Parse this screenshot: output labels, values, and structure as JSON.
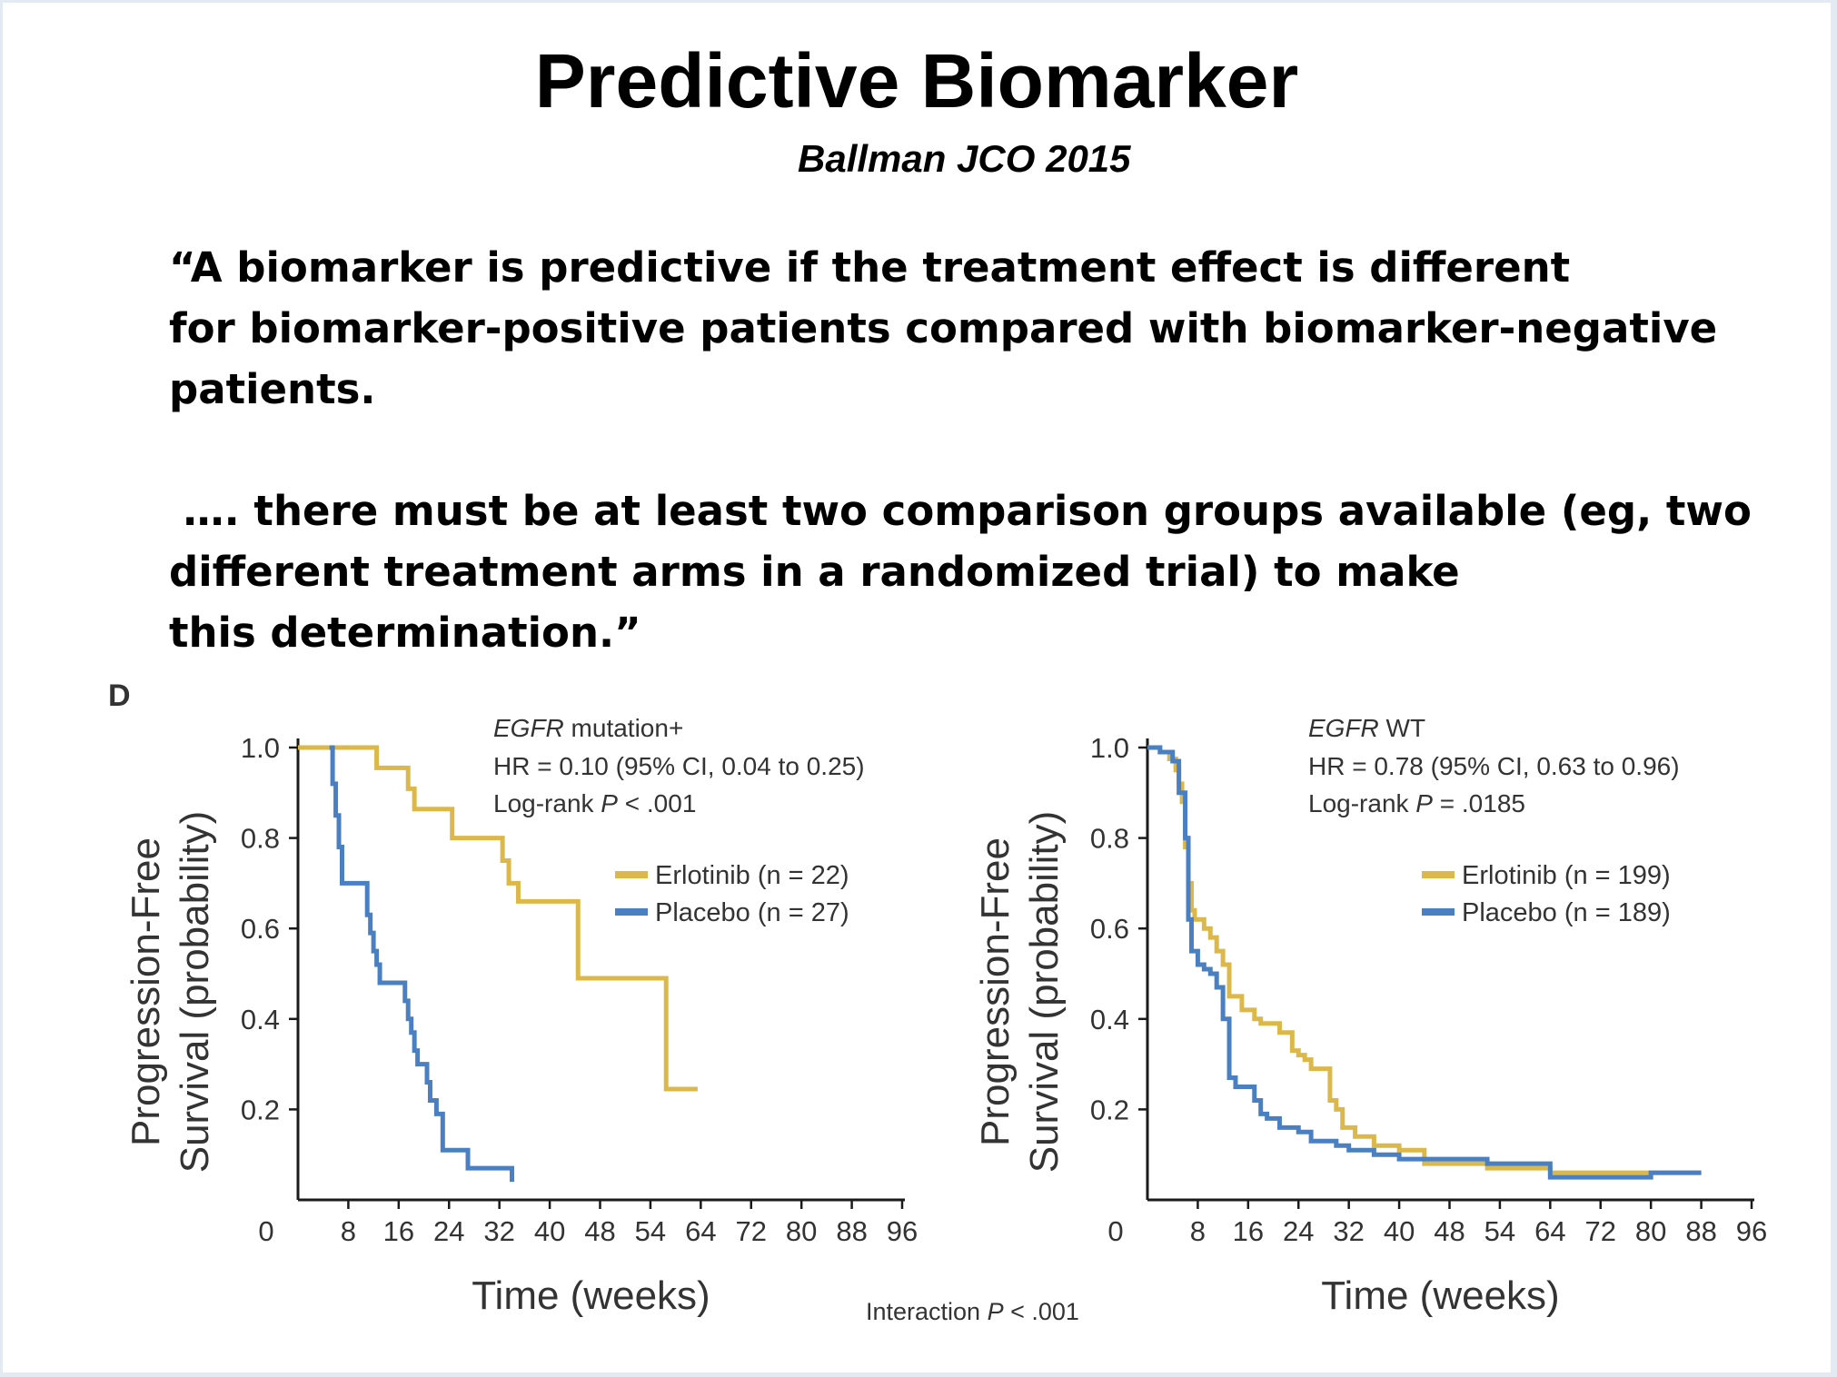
{
  "slide": {
    "title": "Predictive Biomarker",
    "subtitle": "Ballman JCO 2015",
    "quote_lines": [
      "“A biomarker is predictive if the treatment effect is different",
      "for biomarker-positive patients compared with biomarker-negative",
      "patients.",
      "",
      " …. there must be at least two comparison groups available (eg, two",
      "different treatment arms in a randomized trial) to make",
      "this determination.”"
    ],
    "panel_label": "D",
    "interaction_text": "Interaction ",
    "interaction_p": "P",
    "interaction_value": " < .001"
  },
  "colors": {
    "erlotinib": "#dcb84a",
    "placebo": "#4a80c2",
    "axis": "#1a1a1a"
  },
  "chart_data": [
    {
      "type": "line",
      "step": true,
      "ylabel_line1": "Progression-Free",
      "ylabel_line2": "Survival (probability)",
      "xlabel": "Time (weeks)",
      "xticks": [
        "0",
        "8",
        "16",
        "24",
        "32",
        "40",
        "48",
        "54",
        "64",
        "72",
        "80",
        "88",
        "96"
      ],
      "yticks": [
        "1.0",
        "0.8",
        "0.6",
        "0.4",
        "0.2"
      ],
      "ylim": [
        0,
        1.0
      ],
      "xlim": [
        0,
        96
      ],
      "annotation": {
        "gene": "EGFR",
        "gene_suffix": " mutation+",
        "hr": "HR = 0.10 (95% CI, 0.04 to 0.25)",
        "logrank_prefix": "Log-rank ",
        "logrank_p": "P",
        "logrank_value": " < .001"
      },
      "series": [
        {
          "name": "Erlotinib (n = 22)",
          "color_key": "erlotinib",
          "x": [
            0,
            12.5,
            17.5,
            18.5,
            24.5,
            32.5,
            33.5,
            35,
            44.5,
            58.5,
            63.5
          ],
          "y": [
            1.0,
            0.955,
            0.909,
            0.864,
            0.8,
            0.75,
            0.7,
            0.66,
            0.49,
            0.245,
            0.245
          ]
        },
        {
          "name": "Placebo (n = 27)",
          "color_key": "placebo",
          "x": [
            5,
            5.5,
            6,
            6.5,
            7,
            11,
            11.5,
            12,
            12.5,
            13,
            17,
            17.5,
            18,
            18.5,
            19,
            20.5,
            21,
            22,
            23,
            27,
            34
          ],
          "y": [
            1.0,
            0.92,
            0.85,
            0.78,
            0.7,
            0.63,
            0.59,
            0.55,
            0.52,
            0.48,
            0.44,
            0.4,
            0.37,
            0.33,
            0.3,
            0.26,
            0.22,
            0.19,
            0.11,
            0.07,
            0.04
          ]
        }
      ]
    },
    {
      "type": "line",
      "step": true,
      "ylabel_line1": "Progression-Free",
      "ylabel_line2": "Survival (probability)",
      "xlabel": "Time (weeks)",
      "xticks": [
        "0",
        "8",
        "16",
        "24",
        "32",
        "40",
        "48",
        "54",
        "64",
        "72",
        "80",
        "88",
        "96"
      ],
      "yticks": [
        "1.0",
        "0.8",
        "0.6",
        "0.4",
        "0.2"
      ],
      "ylim": [
        0,
        1.0
      ],
      "xlim": [
        0,
        96
      ],
      "annotation": {
        "gene": "EGFR",
        "gene_suffix": " WT",
        "hr": "HR = 0.78 (95% CI, 0.63 to 0.96)",
        "logrank_prefix": "Log-rank ",
        "logrank_p": "P",
        "logrank_value": " = .0185"
      },
      "series": [
        {
          "name": "Erlotinib (n = 199)",
          "color_key": "erlotinib",
          "x": [
            0,
            2,
            3.5,
            4.5,
            5,
            5.5,
            6,
            6.5,
            7,
            7.5,
            9,
            10,
            11,
            12,
            13,
            15,
            17,
            18,
            21,
            23,
            24,
            25,
            26,
            29,
            30,
            31,
            33,
            36,
            40,
            44,
            54,
            64,
            88
          ],
          "y": [
            1.0,
            0.99,
            0.975,
            0.95,
            0.92,
            0.88,
            0.78,
            0.7,
            0.64,
            0.62,
            0.6,
            0.58,
            0.55,
            0.52,
            0.45,
            0.42,
            0.4,
            0.39,
            0.37,
            0.33,
            0.32,
            0.31,
            0.29,
            0.22,
            0.2,
            0.16,
            0.14,
            0.12,
            0.11,
            0.08,
            0.07,
            0.06,
            0.06
          ]
        },
        {
          "name": "Placebo (n = 189)",
          "color_key": "placebo",
          "x": [
            0,
            2,
            4,
            5,
            6,
            6.5,
            7,
            8,
            9,
            10,
            11,
            12,
            13,
            14,
            17,
            18,
            19,
            21,
            24,
            26,
            30,
            32,
            36,
            40,
            54,
            64,
            80,
            88
          ],
          "y": [
            1.0,
            0.99,
            0.97,
            0.9,
            0.8,
            0.62,
            0.55,
            0.52,
            0.51,
            0.5,
            0.47,
            0.4,
            0.27,
            0.25,
            0.22,
            0.19,
            0.18,
            0.16,
            0.15,
            0.13,
            0.12,
            0.11,
            0.1,
            0.09,
            0.08,
            0.05,
            0.06,
            0.06
          ]
        }
      ]
    }
  ]
}
